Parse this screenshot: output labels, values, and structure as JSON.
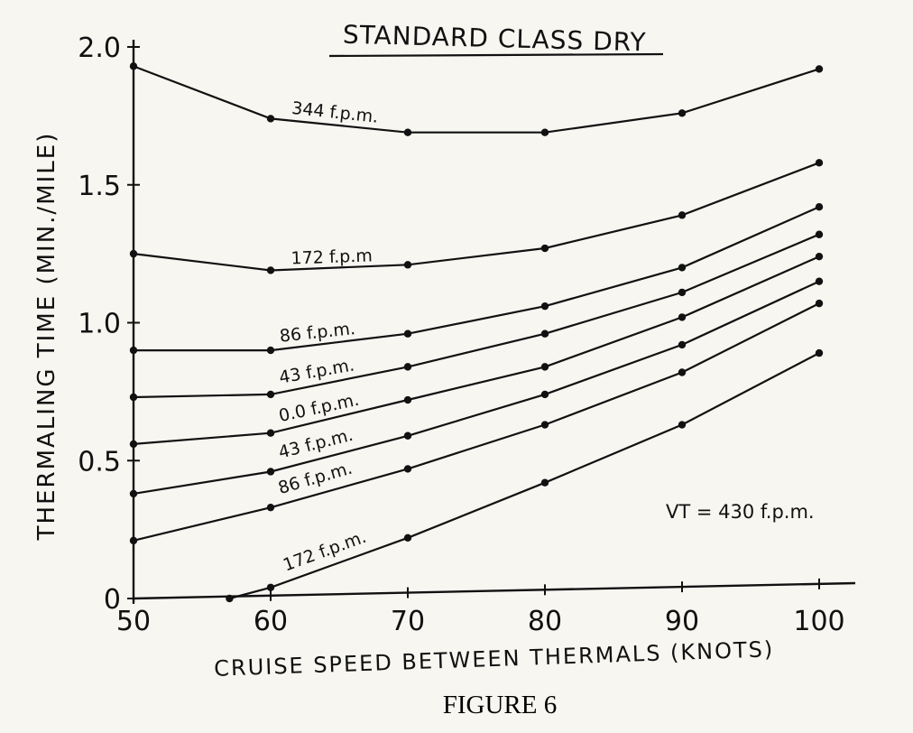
{
  "chart_data": {
    "type": "line",
    "title": "STANDARD CLASS DRY",
    "xlabel": "CRUISE SPEED BETWEEN THERMALS (KNOTS)",
    "ylabel": "THERMALING TIME (MIN./MILE)",
    "caption": "FIGURE 6",
    "annotation": "VT = 430 f.p.m.",
    "xlim": [
      50,
      100
    ],
    "ylim": [
      0,
      2.0
    ],
    "x_ticks": [
      "50",
      "60",
      "70",
      "80",
      "90",
      "100"
    ],
    "y_ticks": [
      "0",
      "0.5",
      "1.0",
      "1.5",
      "2.0"
    ],
    "grid": false,
    "legend": "none (series labelled inline)",
    "series": [
      {
        "name": "344 f.p.m.",
        "x": [
          50,
          60,
          70,
          80,
          90,
          100
        ],
        "y": [
          1.93,
          1.74,
          1.69,
          1.69,
          1.76,
          1.92
        ]
      },
      {
        "name": "172 f.p.m",
        "x": [
          50,
          60,
          70,
          80,
          90,
          100
        ],
        "y": [
          1.25,
          1.19,
          1.21,
          1.27,
          1.39,
          1.58
        ]
      },
      {
        "name": "86 f.p.m.",
        "x": [
          50,
          60,
          70,
          80,
          90,
          100
        ],
        "y": [
          0.9,
          0.9,
          0.96,
          1.06,
          1.2,
          1.42
        ]
      },
      {
        "name": "43 f.p.m.",
        "x": [
          50,
          60,
          70,
          80,
          90,
          100
        ],
        "y": [
          0.73,
          0.74,
          0.84,
          0.96,
          1.11,
          1.32
        ]
      },
      {
        "name": "0.0 f.p.m.",
        "x": [
          50,
          60,
          70,
          80,
          90,
          100
        ],
        "y": [
          0.56,
          0.6,
          0.72,
          0.84,
          1.02,
          1.24
        ]
      },
      {
        "name": "43 f.p.m.",
        "x": [
          50,
          60,
          70,
          80,
          90,
          100
        ],
        "y": [
          0.38,
          0.46,
          0.59,
          0.74,
          0.92,
          1.15
        ]
      },
      {
        "name": "86 f.p.m.",
        "x": [
          50,
          60,
          70,
          80,
          90,
          100
        ],
        "y": [
          0.21,
          0.33,
          0.47,
          0.63,
          0.82,
          1.07
        ]
      },
      {
        "name": "172 f.p.m.",
        "x": [
          57,
          60,
          70,
          80,
          90,
          100
        ],
        "y": [
          0,
          0.04,
          0.22,
          0.42,
          0.63,
          0.89
        ]
      }
    ]
  }
}
